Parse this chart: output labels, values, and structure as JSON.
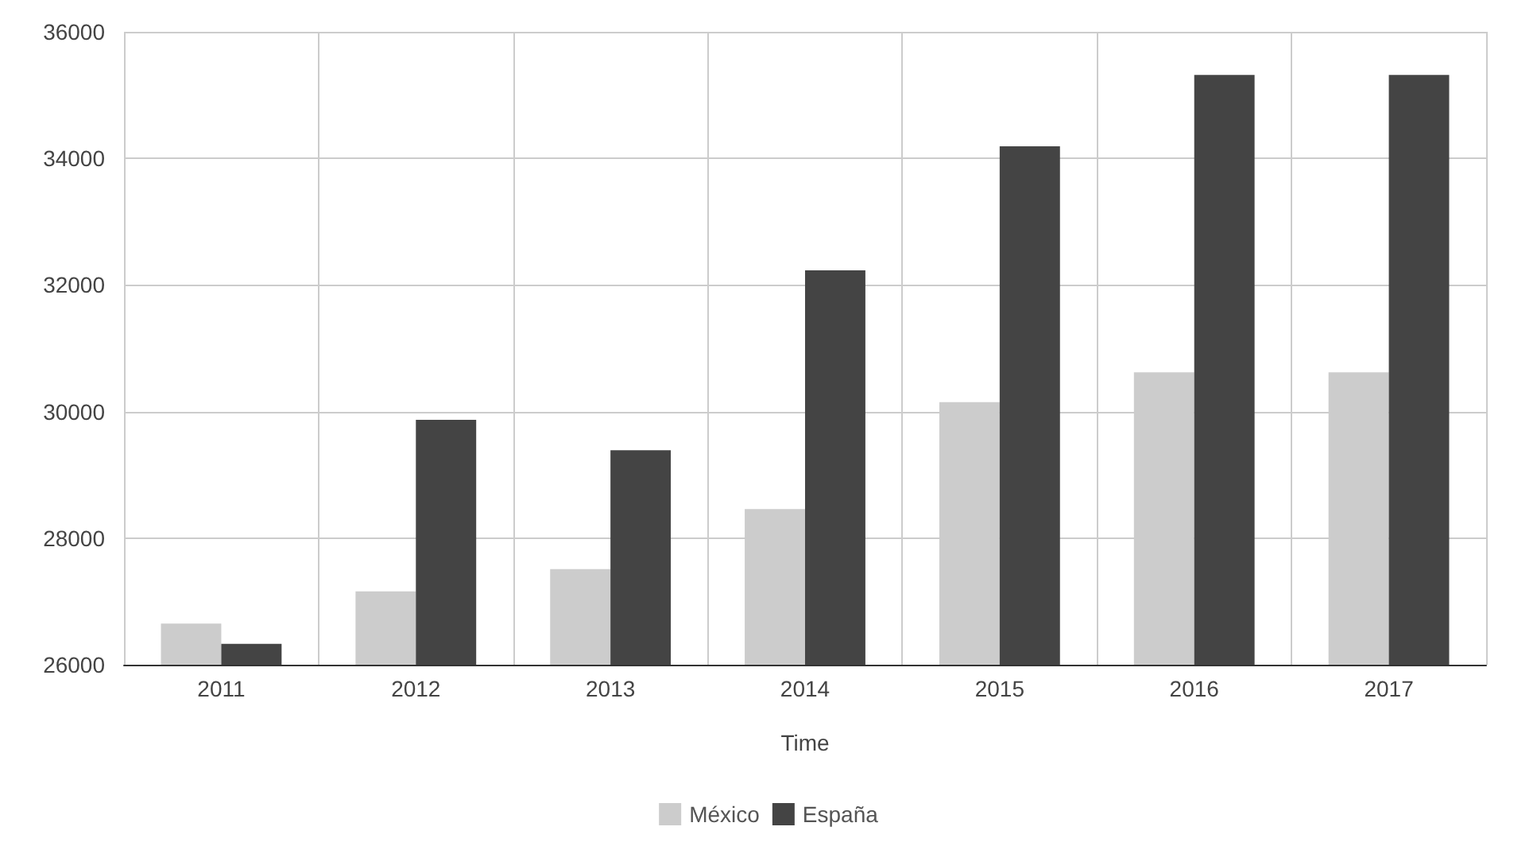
{
  "chart_data": {
    "type": "bar",
    "xlabel": "Time",
    "categories": [
      "2011",
      "2012",
      "2013",
      "2014",
      "2015",
      "2016",
      "2017"
    ],
    "series": [
      {
        "name": "México",
        "color": "#cccccc",
        "values": [
          26650,
          27160,
          27510,
          28460,
          30150,
          30620,
          30620
        ]
      },
      {
        "name": "España",
        "color": "#444444",
        "values": [
          26330,
          29870,
          29390,
          32230,
          34190,
          35320,
          35320
        ]
      }
    ],
    "ylim": [
      26000,
      36000
    ],
    "yticks": [
      26000,
      28000,
      30000,
      32000,
      34000,
      36000
    ],
    "grid": true,
    "legend": "bottom"
  }
}
